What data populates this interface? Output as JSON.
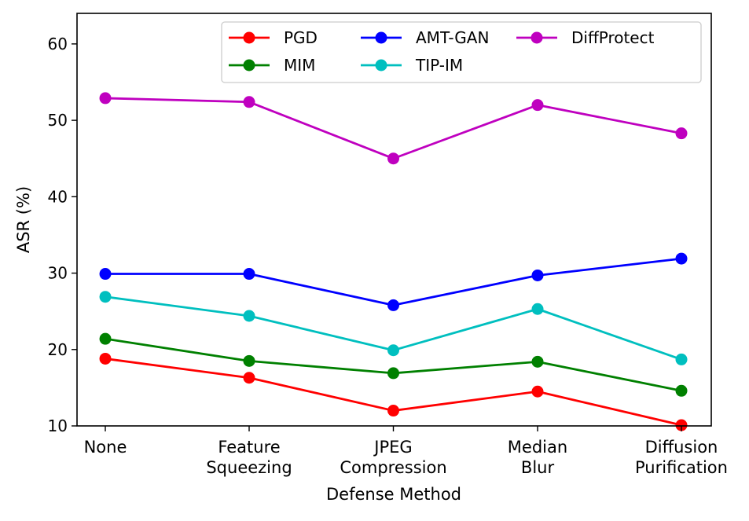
{
  "chart_data": {
    "type": "line",
    "title": "",
    "xlabel": "Defense Method",
    "ylabel": "ASR (%)",
    "categories": [
      [
        "None"
      ],
      [
        "Feature",
        "Squeezing"
      ],
      [
        "JPEG",
        "Compression"
      ],
      [
        "Median",
        "Blur"
      ],
      [
        "Diffusion",
        "Purification"
      ]
    ],
    "ylim": [
      10,
      64
    ],
    "yticks": [
      "10",
      "20",
      "30",
      "40",
      "50",
      "60"
    ],
    "grid": false,
    "legend_position": "top-right",
    "series": [
      {
        "name": "PGD",
        "color": "#ff0000",
        "values": [
          18.8,
          16.3,
          12.0,
          14.5,
          10.1
        ]
      },
      {
        "name": "MIM",
        "color": "#008000",
        "values": [
          21.4,
          18.5,
          16.9,
          18.4,
          14.6
        ]
      },
      {
        "name": "AMT-GAN",
        "color": "#0000ff",
        "values": [
          29.9,
          29.9,
          25.8,
          29.7,
          31.9
        ]
      },
      {
        "name": "TIP-IM",
        "color": "#00bfbf",
        "values": [
          26.9,
          24.4,
          19.9,
          25.3,
          18.7
        ]
      },
      {
        "name": "DiffProtect",
        "color": "#bf00bf",
        "values": [
          52.9,
          52.4,
          45.0,
          52.0,
          48.3
        ]
      }
    ]
  }
}
